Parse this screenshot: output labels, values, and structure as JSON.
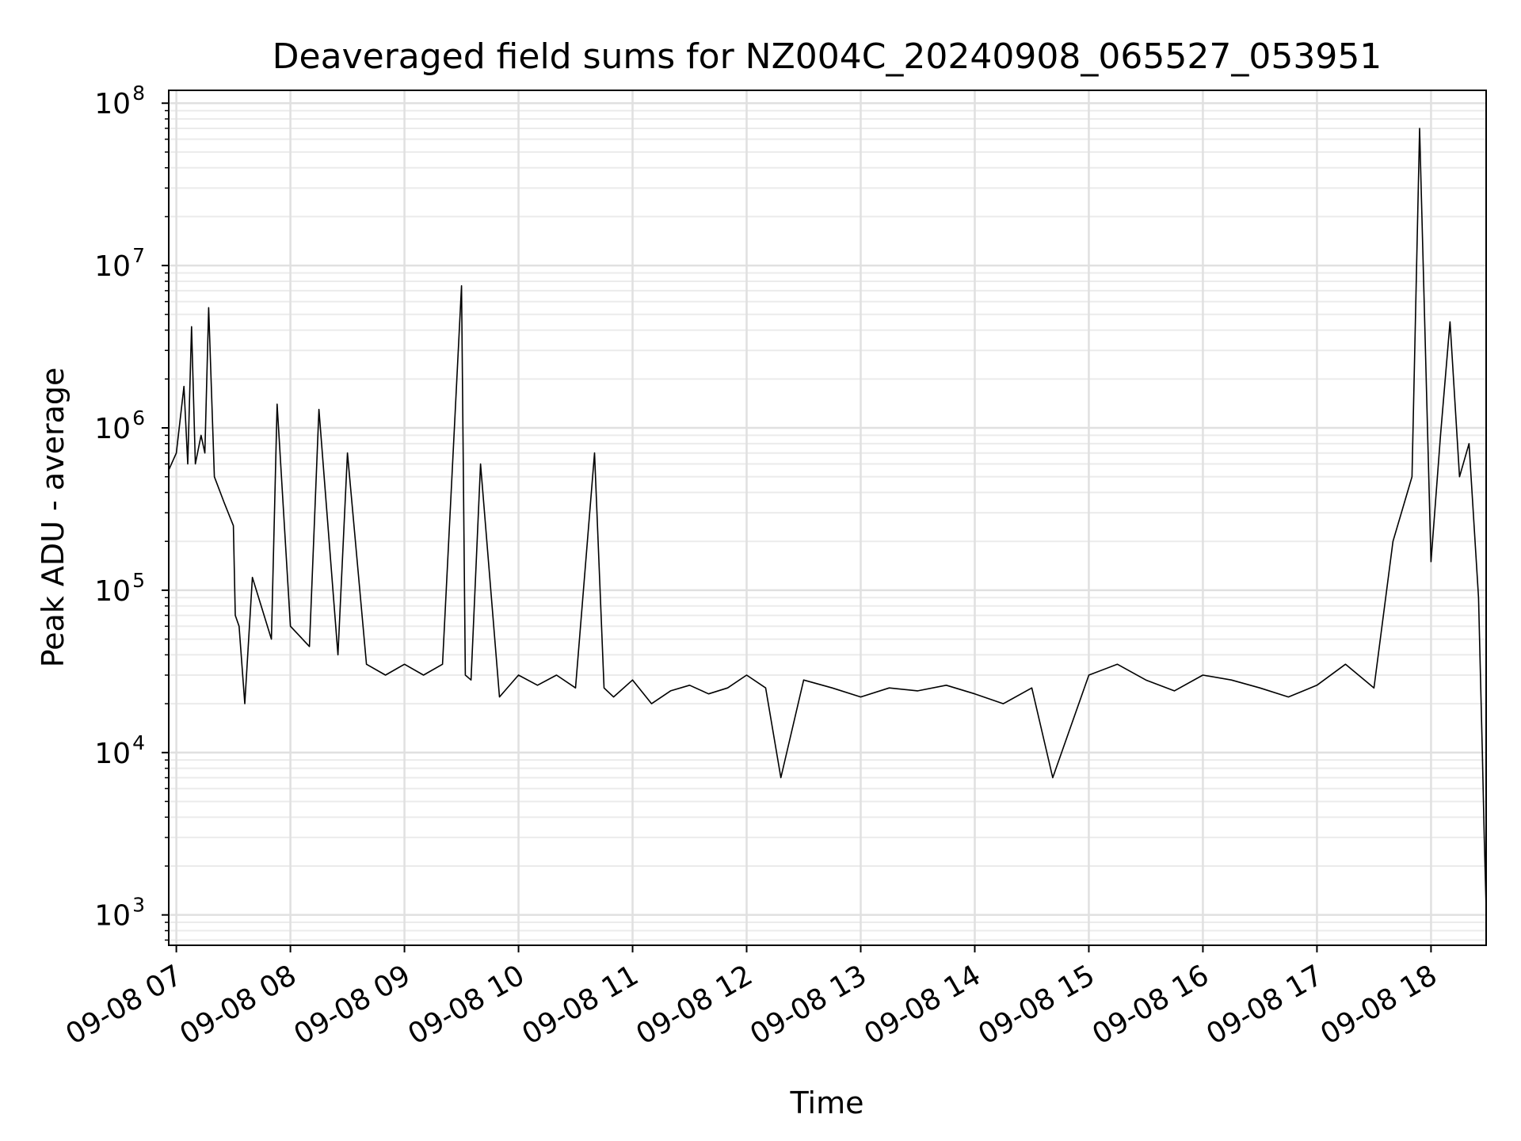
{
  "chart_data": {
    "type": "line",
    "title": "Deaveraged field sums for NZ004C_20240908_065527_053951",
    "xlabel": "Time",
    "ylabel": "Peak ADU - average",
    "yscale": "log",
    "ylim": [
      650,
      120000000
    ],
    "xlim": [
      "09-08 06:56",
      "09-08 18:29"
    ],
    "grid": true,
    "grid_minor": true,
    "line_color": "#000000",
    "x_ticks": [
      "09-08 07",
      "09-08 08",
      "09-08 09",
      "09-08 10",
      "09-08 11",
      "09-08 12",
      "09-08 13",
      "09-08 14",
      "09-08 15",
      "09-08 16",
      "09-08 17",
      "09-08 18"
    ],
    "y_ticks": [
      {
        "base": "10",
        "exp": "3",
        "value": 1000
      },
      {
        "base": "10",
        "exp": "4",
        "value": 10000
      },
      {
        "base": "10",
        "exp": "5",
        "value": 100000
      },
      {
        "base": "10",
        "exp": "6",
        "value": 1000000
      },
      {
        "base": "10",
        "exp": "7",
        "value": 10000000
      },
      {
        "base": "10",
        "exp": "8",
        "value": 100000000
      }
    ],
    "series": [
      {
        "x": [
          "09-08 06:56",
          "09-08 07:00",
          "09-08 07:04",
          "09-08 07:06",
          "09-08 07:08",
          "09-08 07:10",
          "09-08 07:13",
          "09-08 07:15",
          "09-08 07:17",
          "09-08 07:20",
          "09-08 07:25",
          "09-08 07:30",
          "09-08 07:31",
          "09-08 07:33",
          "09-08 07:36",
          "09-08 07:40",
          "09-08 07:50",
          "09-08 07:53",
          "09-08 08:00",
          "09-08 08:10",
          "09-08 08:15",
          "09-08 08:25",
          "09-08 08:30",
          "09-08 08:40",
          "09-08 08:50",
          "09-08 09:00",
          "09-08 09:10",
          "09-08 09:20",
          "09-08 09:30",
          "09-08 09:32",
          "09-08 09:35",
          "09-08 09:40",
          "09-08 09:50",
          "09-08 10:00",
          "09-08 10:10",
          "09-08 10:20",
          "09-08 10:30",
          "09-08 10:40",
          "09-08 10:45",
          "09-08 10:50",
          "09-08 11:00",
          "09-08 11:10",
          "09-08 11:20",
          "09-08 11:30",
          "09-08 11:40",
          "09-08 11:50",
          "09-08 12:00",
          "09-08 12:10",
          "09-08 12:18",
          "09-08 12:30",
          "09-08 12:45",
          "09-08 13:00",
          "09-08 13:15",
          "09-08 13:30",
          "09-08 13:45",
          "09-08 14:00",
          "09-08 14:15",
          "09-08 14:30",
          "09-08 14:41",
          "09-08 15:00",
          "09-08 15:15",
          "09-08 15:30",
          "09-08 15:45",
          "09-08 16:00",
          "09-08 16:15",
          "09-08 16:30",
          "09-08 16:45",
          "09-08 17:00",
          "09-08 17:15",
          "09-08 17:30",
          "09-08 17:40",
          "09-08 17:50",
          "09-08 17:54",
          "09-08 18:00",
          "09-08 18:05",
          "09-08 18:10",
          "09-08 18:15",
          "09-08 18:20",
          "09-08 18:25",
          "09-08 18:27",
          "09-08 18:28",
          "09-08 18:29"
        ],
        "y": [
          550000,
          700000,
          1800000,
          600000,
          4200000,
          600000,
          900000,
          700000,
          5500000,
          500000,
          350000,
          250000,
          70000,
          60000,
          20000,
          120000,
          50000,
          1400000,
          60000,
          45000,
          1300000,
          40000,
          700000,
          35000,
          30000,
          35000,
          30000,
          35000,
          7500000,
          30000,
          28000,
          600000,
          22000,
          30000,
          26000,
          30000,
          25000,
          700000,
          25000,
          22000,
          28000,
          20000,
          24000,
          26000,
          23000,
          25000,
          30000,
          25000,
          7000,
          28000,
          25000,
          22000,
          25000,
          24000,
          26000,
          23000,
          20000,
          25000,
          7000,
          30000,
          35000,
          28000,
          24000,
          30000,
          28000,
          25000,
          22000,
          26000,
          35000,
          25000,
          200000,
          500000,
          70000000,
          150000,
          900000,
          4500000,
          500000,
          800000,
          90000,
          10000,
          3000,
          1100
        ]
      }
    ]
  }
}
